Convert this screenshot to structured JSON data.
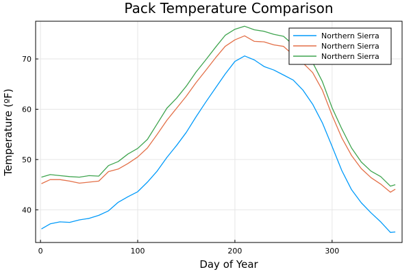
{
  "chart_data": {
    "type": "line",
    "title": "Pack Temperature Comparison",
    "xlabel": "Day of Year",
    "ylabel": "Temperature (ºF)",
    "xlim": [
      -5,
      372
    ],
    "ylim": [
      33.5,
      77.5
    ],
    "xticks": [
      0,
      100,
      200,
      300
    ],
    "yticks": [
      40,
      50,
      60,
      70
    ],
    "grid": true,
    "legend_position": "top-right",
    "x": [
      1,
      10,
      20,
      30,
      40,
      50,
      60,
      70,
      80,
      90,
      100,
      110,
      120,
      130,
      140,
      150,
      160,
      170,
      180,
      190,
      200,
      210,
      220,
      230,
      240,
      250,
      260,
      270,
      280,
      290,
      300,
      310,
      320,
      330,
      340,
      350,
      360,
      365
    ],
    "series": [
      {
        "name": "Northern Sierra",
        "color": "#009AFA",
        "values": [
          36.2,
          37.2,
          37.6,
          37.5,
          38.0,
          38.3,
          38.9,
          39.8,
          41.5,
          42.6,
          43.6,
          45.5,
          47.7,
          50.4,
          52.8,
          55.4,
          58.5,
          61.4,
          64.2,
          67.0,
          69.5,
          70.6,
          69.8,
          68.5,
          67.8,
          66.8,
          65.8,
          63.8,
          61.0,
          57.3,
          52.6,
          47.8,
          44.0,
          41.4,
          39.4,
          37.6,
          35.5,
          35.6
        ]
      },
      {
        "name": "Northern Sierra",
        "color": "#E36F47",
        "values": [
          45.2,
          46.0,
          46.0,
          45.7,
          45.3,
          45.5,
          45.7,
          47.6,
          48.1,
          49.2,
          50.5,
          52.3,
          55.0,
          57.8,
          60.2,
          62.6,
          65.3,
          67.7,
          70.2,
          72.5,
          73.8,
          74.6,
          73.5,
          73.4,
          72.8,
          72.5,
          70.8,
          69.2,
          67.3,
          63.8,
          58.8,
          54.3,
          50.8,
          48.2,
          46.4,
          45.1,
          43.5,
          44.1
        ]
      },
      {
        "name": "Northern Sierra",
        "color": "#3EA44E",
        "values": [
          46.5,
          47.0,
          46.8,
          46.6,
          46.5,
          46.8,
          46.7,
          48.8,
          49.6,
          51.1,
          52.2,
          54.0,
          57.1,
          60.2,
          62.2,
          64.6,
          67.4,
          69.8,
          72.3,
          74.7,
          75.9,
          76.5,
          75.8,
          75.5,
          74.9,
          74.5,
          72.8,
          71.2,
          69.3,
          65.5,
          60.3,
          56.1,
          52.3,
          49.5,
          47.7,
          46.6,
          44.7,
          45.0
        ]
      }
    ]
  }
}
